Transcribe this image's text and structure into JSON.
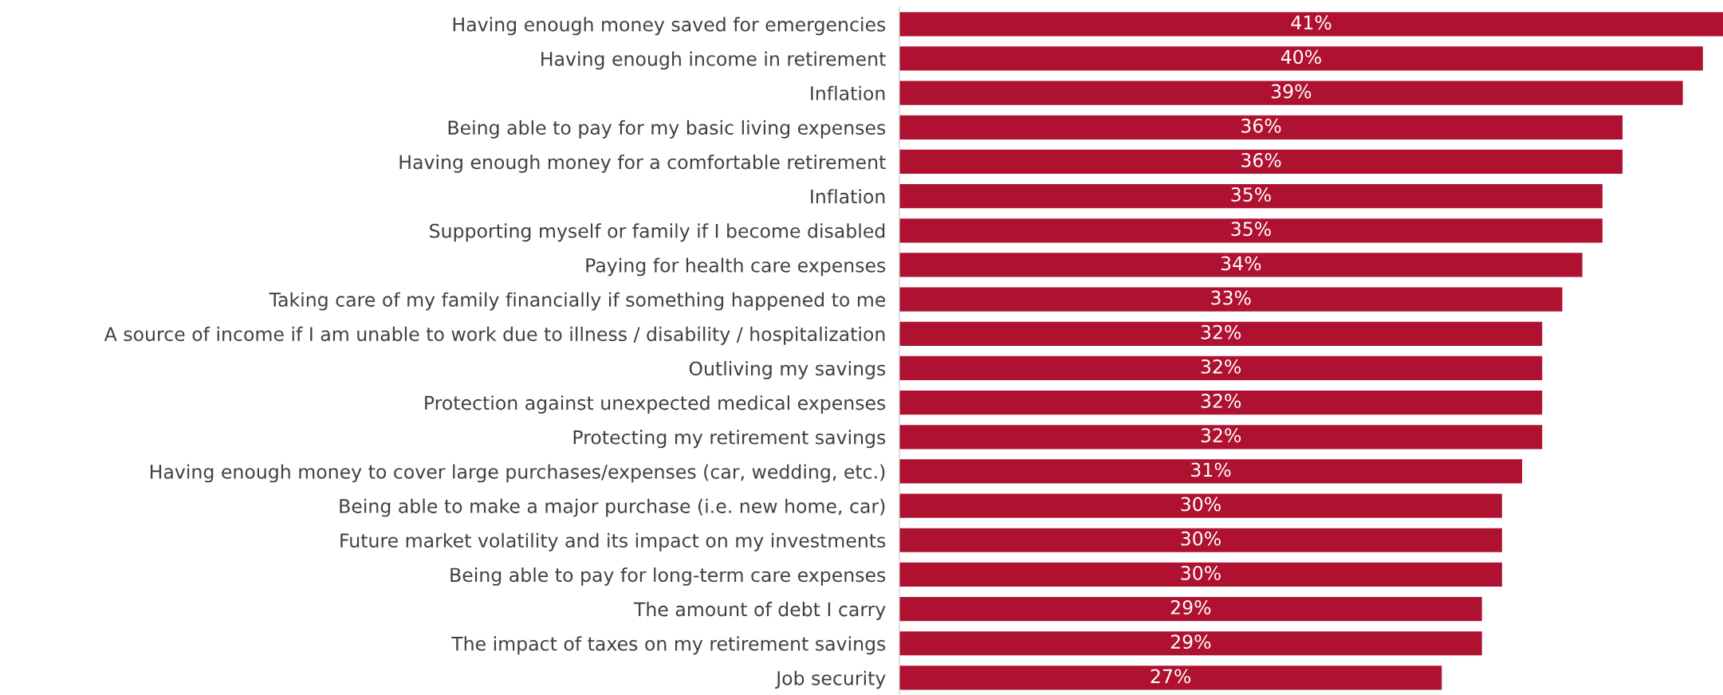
{
  "chart_data": {
    "type": "bar",
    "orientation": "horizontal",
    "categories": [
      "Having enough money saved for emergencies",
      "Having enough income in retirement",
      "Inflation",
      "Being able to pay for my basic living expenses",
      "Having enough money for a comfortable retirement",
      "Inflation",
      "Supporting myself or family if I become disabled",
      "Paying for health care expenses",
      "Taking care of my family financially if something happened to me",
      "A source of income if I am unable to work due to illness / disability / hospitalization",
      "Outliving my savings",
      "Protection against unexpected medical expenses",
      "Protecting my retirement savings",
      "Having enough money to cover large purchases/expenses (car, wedding, etc.)",
      "Being able to make a major purchase (i.e. new home, car)",
      "Future market volatility and its impact on my investments",
      "Being able to pay for long-term care expenses",
      "The amount of debt I carry",
      "The impact of taxes on my retirement savings",
      "Job security"
    ],
    "values": [
      41,
      40,
      39,
      36,
      36,
      35,
      35,
      34,
      33,
      32,
      32,
      32,
      32,
      31,
      30,
      30,
      30,
      29,
      29,
      27
    ],
    "value_labels": [
      "41%",
      "40%",
      "39%",
      "36%",
      "36%",
      "35%",
      "35%",
      "34%",
      "33%",
      "32%",
      "32%",
      "32%",
      "32%",
      "31%",
      "30%",
      "30%",
      "30%",
      "29%",
      "29%",
      "27%"
    ],
    "color": "#af1230",
    "grid": false,
    "legend": false,
    "tick_labels": "y"
  }
}
